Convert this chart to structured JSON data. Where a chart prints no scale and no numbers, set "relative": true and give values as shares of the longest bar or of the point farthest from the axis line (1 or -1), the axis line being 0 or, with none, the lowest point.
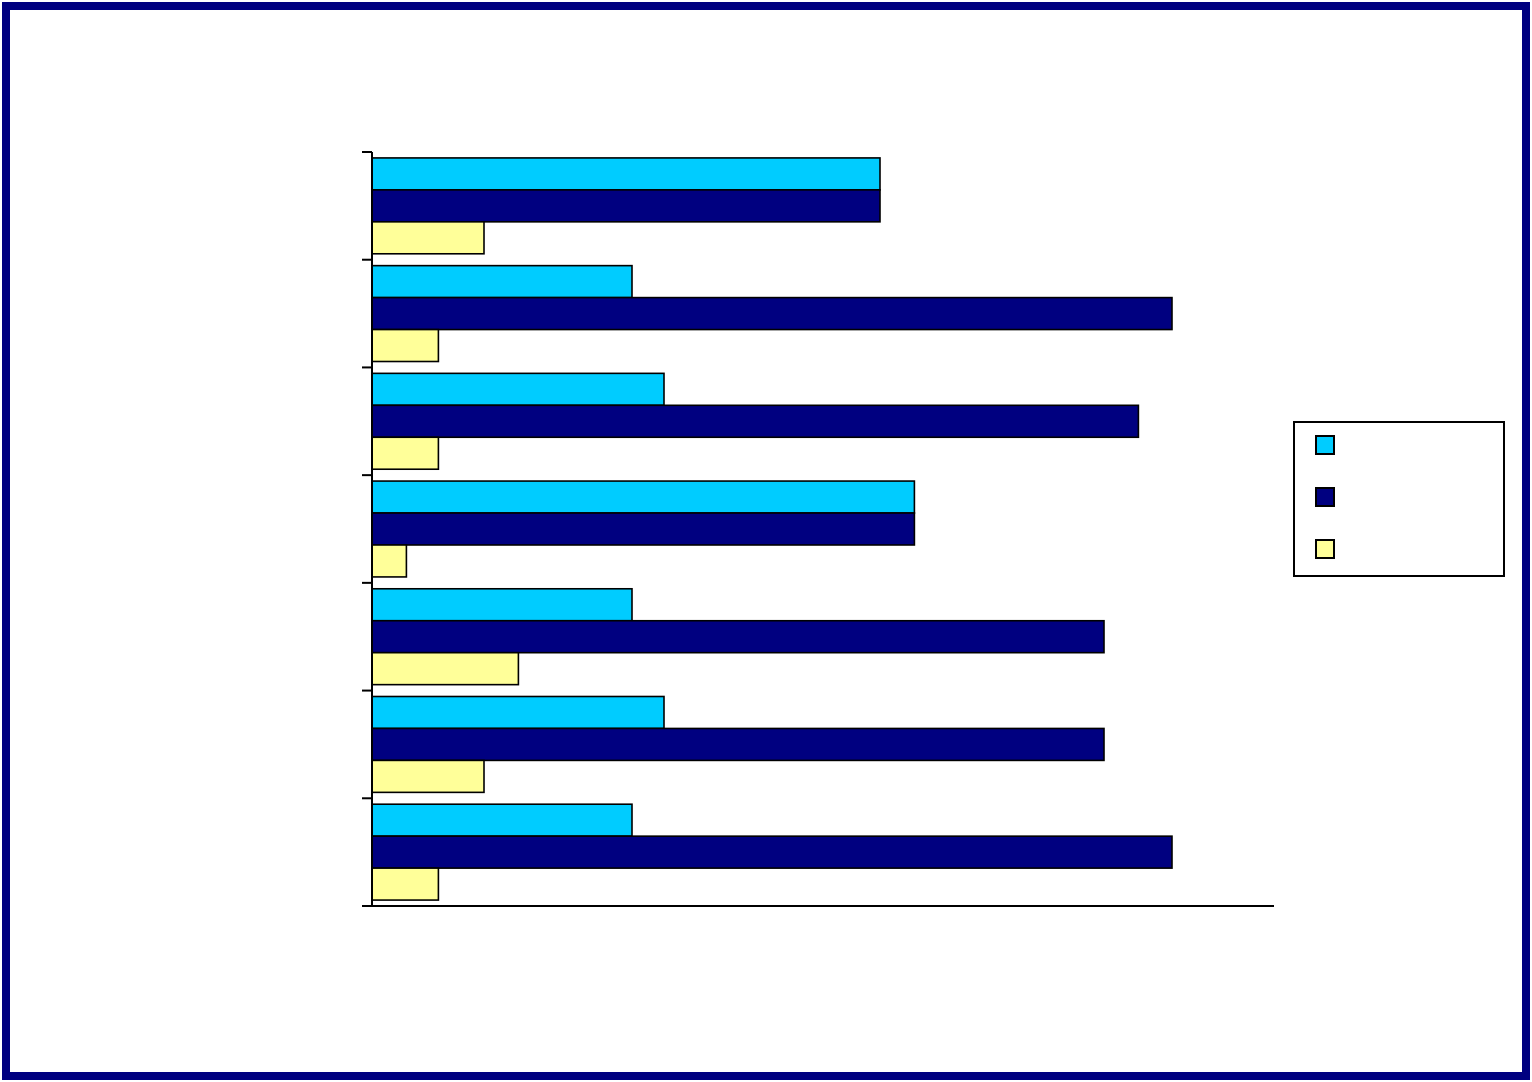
{
  "chart_data": {
    "type": "bar",
    "orientation": "horizontal",
    "relative": true,
    "categories": [
      null,
      null,
      null,
      null,
      null,
      null,
      null
    ],
    "series": [
      {
        "color": "#00ccff",
        "values": [
          0.635,
          0.325,
          0.365,
          0.678,
          0.325,
          0.365,
          0.325
        ]
      },
      {
        "color": "#000080",
        "values": [
          0.635,
          1,
          0.958,
          0.678,
          0.915,
          0.915,
          1
        ]
      },
      {
        "color": "#ffff99",
        "values": [
          0.14,
          0.083,
          0.083,
          0.043,
          0.183,
          0.14,
          0.083
        ]
      }
    ]
  }
}
